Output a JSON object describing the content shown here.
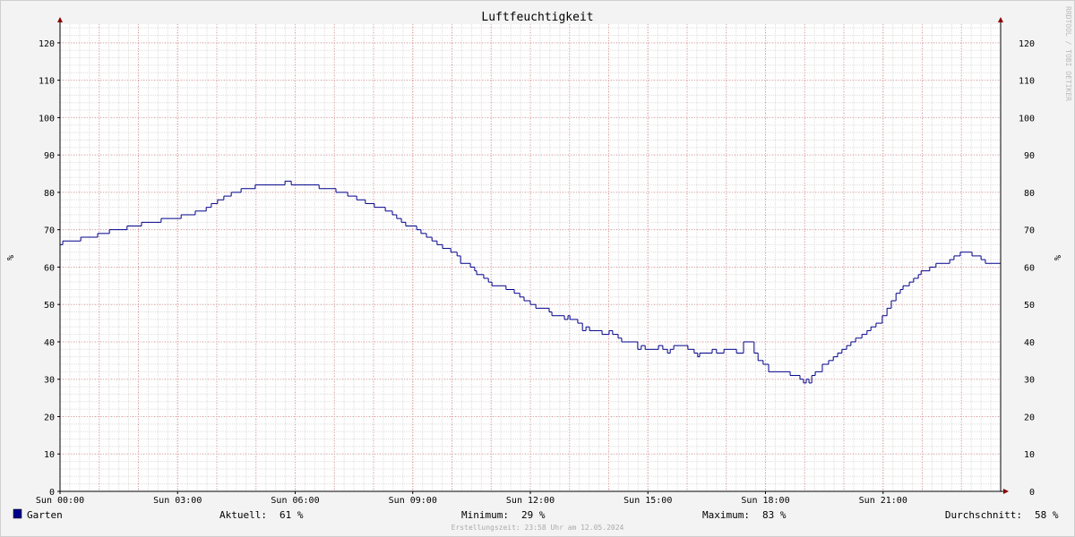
{
  "chart_data": {
    "type": "step",
    "title": "Luftfeuchtigkeit",
    "y_label": "%",
    "watermark": "RRDTOOL / TOBI OETIKER",
    "footer": "Erstellungszeit: 23:58 Uhr am 12.05.2024",
    "xlim": [
      0,
      24
    ],
    "xticks": [
      {
        "value": 0,
        "label": "Sun 00:00"
      },
      {
        "value": 3,
        "label": "Sun 03:00"
      },
      {
        "value": 6,
        "label": "Sun 06:00"
      },
      {
        "value": 9,
        "label": "Sun 09:00"
      },
      {
        "value": 12,
        "label": "Sun 12:00"
      },
      {
        "value": 15,
        "label": "Sun 15:00"
      },
      {
        "value": 18,
        "label": "Sun 18:00"
      },
      {
        "value": 21,
        "label": "Sun 21:00"
      }
    ],
    "ylim": [
      0,
      125
    ],
    "yticks": [
      0,
      10,
      20,
      30,
      40,
      50,
      60,
      70,
      80,
      90,
      100,
      110,
      120
    ],
    "grid": true,
    "minor_grid": true,
    "x": [
      0,
      0.07,
      0.53,
      0.96,
      1.26,
      1.71,
      2.08,
      2.58,
      3.09,
      3.45,
      3.73,
      3.86,
      4.02,
      4.18,
      4.37,
      4.62,
      4.98,
      5.74,
      5.9,
      6.61,
      7.04,
      7.34,
      7.57,
      7.79,
      8.02,
      8.3,
      8.48,
      8.59,
      8.71,
      8.82,
      9.1,
      9.21,
      9.35,
      9.49,
      9.62,
      9.76,
      9.97,
      10.13,
      10.22,
      10.47,
      10.58,
      10.63,
      10.81,
      10.93,
      11.02,
      11.38,
      11.59,
      11.73,
      11.84,
      12.0,
      12.14,
      12.48,
      12.55,
      12.87,
      12.96,
      13.01,
      13.21,
      13.33,
      13.42,
      13.51,
      13.83,
      14.01,
      14.1,
      14.24,
      14.33,
      14.74,
      14.83,
      14.93,
      15.27,
      15.38,
      15.5,
      15.57,
      15.66,
      16.02,
      16.18,
      16.27,
      16.32,
      16.64,
      16.75,
      16.94,
      17.26,
      17.44,
      17.71,
      17.81,
      17.94,
      18.08,
      18.63,
      18.88,
      18.97,
      19.04,
      19.11,
      19.18,
      19.27,
      19.45,
      19.61,
      19.73,
      19.84,
      19.95,
      20.07,
      20.18,
      20.3,
      20.46,
      20.59,
      20.69,
      20.82,
      20.98,
      21.1,
      21.21,
      21.33,
      21.44,
      21.51,
      21.67,
      21.78,
      21.9,
      21.97,
      22.19,
      22.35,
      22.7,
      22.81,
      22.97,
      23.27,
      23.5,
      23.61,
      24.0
    ],
    "series": [
      {
        "name": "Garten",
        "color": "#00008b",
        "values": [
          66,
          67,
          68,
          69,
          70,
          71,
          72,
          73,
          74,
          75,
          76,
          77,
          78,
          79,
          80,
          81,
          82,
          83,
          82,
          81,
          80,
          79,
          78,
          77,
          76,
          75,
          74,
          73,
          72,
          71,
          70,
          69,
          68,
          67,
          66,
          65,
          64,
          63,
          61,
          60,
          59,
          58,
          57,
          56,
          55,
          54,
          53,
          52,
          51,
          50,
          49,
          48,
          47,
          46,
          47,
          46,
          45,
          43,
          44,
          43,
          42,
          43,
          42,
          41,
          40,
          38,
          39,
          38,
          39,
          38,
          37,
          38,
          39,
          38,
          37,
          36,
          37,
          38,
          37,
          38,
          37,
          40,
          37,
          35,
          34,
          32,
          31,
          30,
          29,
          30,
          29,
          31,
          32,
          34,
          35,
          36,
          37,
          38,
          39,
          40,
          41,
          42,
          43,
          44,
          45,
          47,
          49,
          51,
          53,
          54,
          55,
          56,
          57,
          58,
          59,
          60,
          61,
          62,
          63,
          64,
          63,
          62,
          61,
          61
        ]
      }
    ],
    "stats": [
      {
        "label": "Aktuell:",
        "value": 61,
        "value_label": "61 %"
      },
      {
        "label": "Minimum:",
        "value": 29,
        "value_label": "29 %"
      },
      {
        "label": "Maximum:",
        "value": 83,
        "value_label": "83 %"
      },
      {
        "label": "Durchschnitt:",
        "value": 58,
        "value_label": "58 %"
      }
    ]
  }
}
